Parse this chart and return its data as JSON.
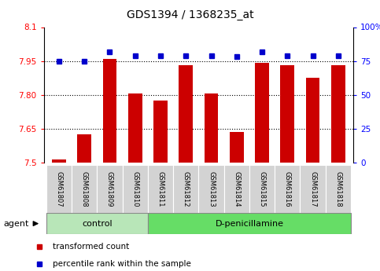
{
  "title": "GDS1394 / 1368235_at",
  "samples": [
    "GSM61807",
    "GSM61808",
    "GSM61809",
    "GSM61810",
    "GSM61811",
    "GSM61812",
    "GSM61813",
    "GSM61814",
    "GSM61815",
    "GSM61816",
    "GSM61817",
    "GSM61818"
  ],
  "red_values": [
    7.515,
    7.625,
    7.96,
    7.805,
    7.775,
    7.93,
    7.805,
    7.635,
    7.94,
    7.93,
    7.875,
    7.93
  ],
  "blue_values": [
    75,
    75,
    82,
    79,
    79,
    79,
    79,
    78,
    82,
    79,
    79,
    79
  ],
  "ylim_left": [
    7.5,
    8.1
  ],
  "ylim_right": [
    0,
    100
  ],
  "yticks_left": [
    7.5,
    7.65,
    7.8,
    7.95,
    8.1
  ],
  "yticks_right": [
    0,
    25,
    50,
    75,
    100
  ],
  "ytick_labels_left": [
    "7.5",
    "7.65",
    "7.80",
    "7.95",
    "8.1"
  ],
  "ytick_labels_right": [
    "0",
    "25",
    "50",
    "75",
    "100%"
  ],
  "hlines": [
    7.65,
    7.8,
    7.95
  ],
  "control_label": "control",
  "treatment_label": "D-penicillamine",
  "agent_label": "agent",
  "control_count": 4,
  "bar_color": "#cc0000",
  "dot_color": "#0000cc",
  "control_bg": "#b8e6b8",
  "treatment_bg": "#66dd66",
  "sample_bg": "#d3d3d3",
  "legend_red": "transformed count",
  "legend_blue": "percentile rank within the sample"
}
